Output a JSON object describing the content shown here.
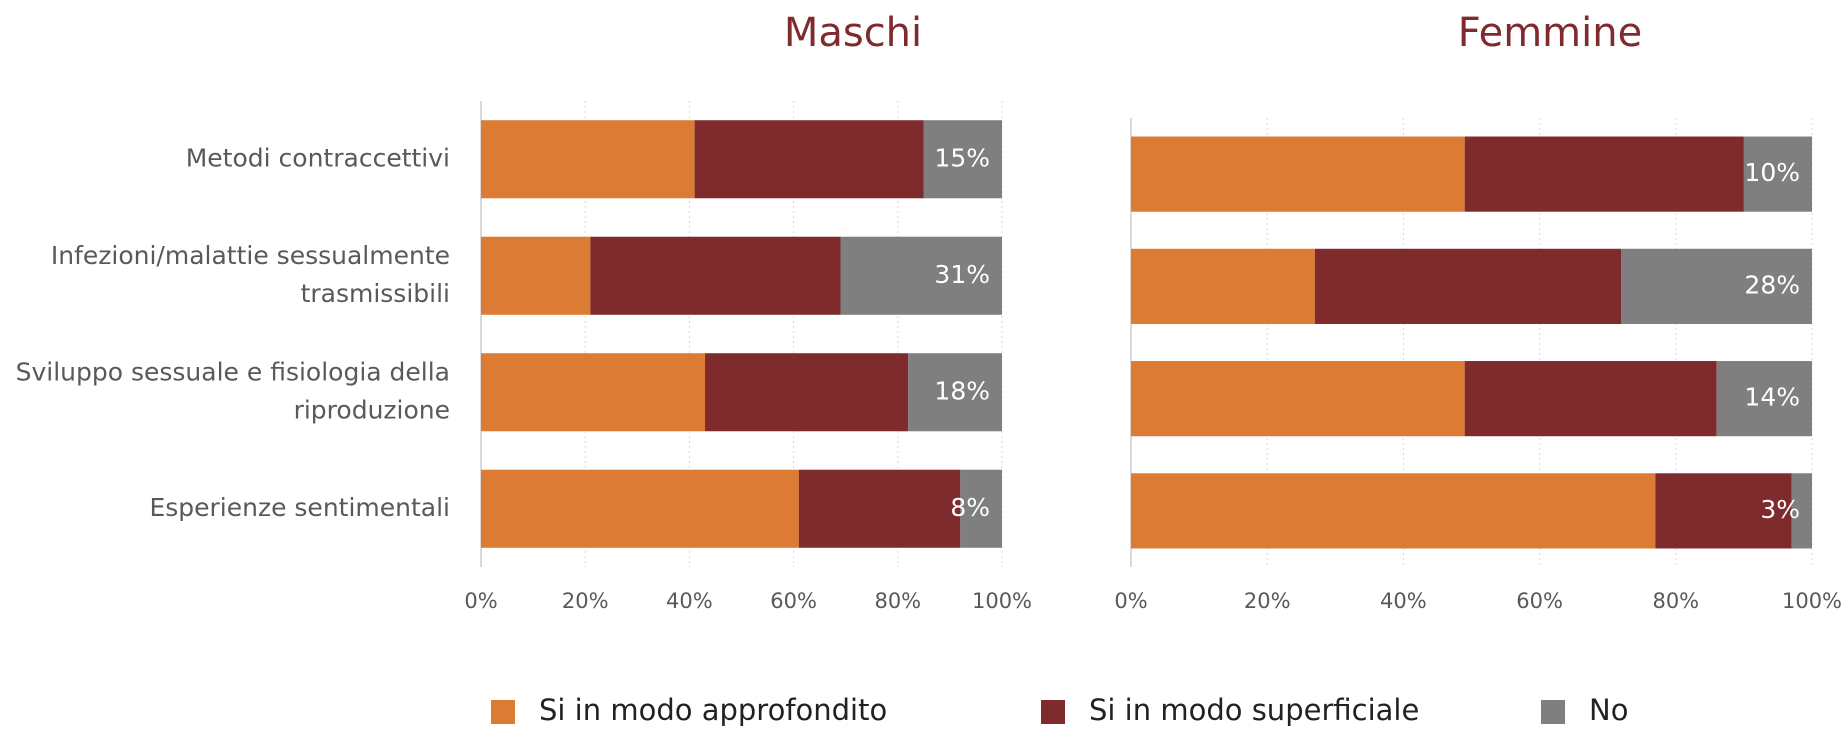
{
  "chart_data": [
    {
      "type": "stacked-bar-horizontal",
      "title": "Maschi",
      "categories": [
        "Metodi contraccettivi",
        "Infezioni/malattie sessualmente trasmissibili",
        "Sviluppo sessuale e fisiologia della riproduzione",
        "Esperienze sentimentali"
      ],
      "series": [
        {
          "name": "Si in modo approfondito",
          "color": "#dc7b33",
          "values": [
            41,
            21,
            43,
            61
          ]
        },
        {
          "name": "Si in modo superficiale",
          "color": "#7f2b2e",
          "values": [
            44,
            48,
            39,
            31
          ]
        },
        {
          "name": "No",
          "color": "#7f7f7f",
          "values": [
            15,
            31,
            18,
            8
          ],
          "value_labels": [
            "15%",
            "31%",
            "18%",
            "8%"
          ]
        }
      ],
      "xlim": [
        0,
        100
      ],
      "xticks": [
        {
          "value": 0,
          "label": "0%"
        },
        {
          "value": 20,
          "label": "20%"
        },
        {
          "value": 40,
          "label": "40%"
        },
        {
          "value": 60,
          "label": "60%"
        },
        {
          "value": 80,
          "label": "80%"
        },
        {
          "value": 100,
          "label": "100%"
        }
      ],
      "grid": true
    },
    {
      "type": "stacked-bar-horizontal",
      "title": "Femmine",
      "series": [
        {
          "values": [
            49,
            27,
            49,
            77
          ]
        },
        {
          "values": [
            41,
            45,
            37,
            20
          ]
        },
        {
          "values": [
            10,
            28,
            14,
            3
          ],
          "value_labels": [
            "10%",
            "28%",
            "14%",
            "3%"
          ]
        }
      ],
      "xlim": [
        0,
        100
      ],
      "xticks": [
        {
          "value": 0,
          "label": "0%"
        },
        {
          "value": 20,
          "label": "20%"
        },
        {
          "value": 40,
          "label": "40%"
        },
        {
          "value": 60,
          "label": "60%"
        },
        {
          "value": 80,
          "label": "80%"
        },
        {
          "value": 100,
          "label": "100%"
        }
      ],
      "grid": true
    }
  ]
}
